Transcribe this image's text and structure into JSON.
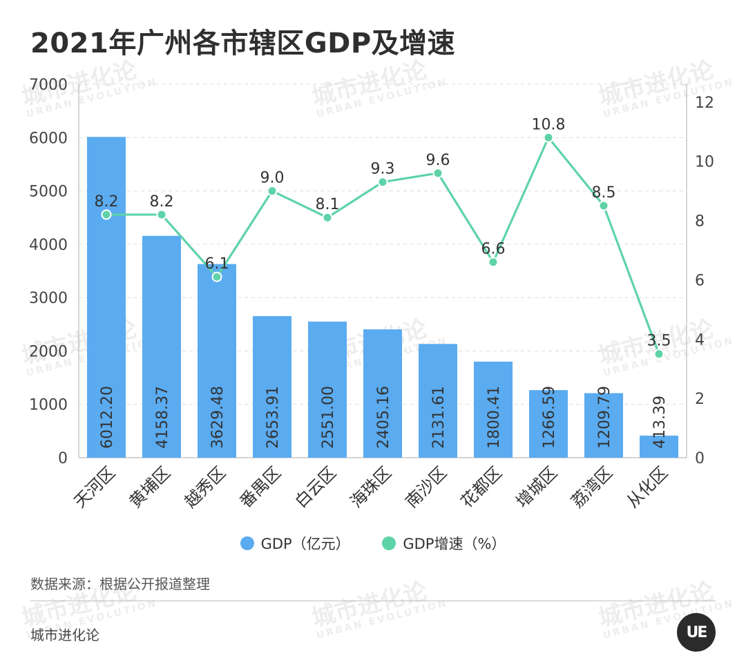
{
  "title": "2021年广州各市辖区GDP及增速",
  "chart_data": {
    "type": "bar+line",
    "categories": [
      "天河区",
      "黄埔区",
      "越秀区",
      "番禺区",
      "白云区",
      "海珠区",
      "南沙区",
      "花都区",
      "增城区",
      "荔湾区",
      "从化区"
    ],
    "series": [
      {
        "name": "GDP（亿元）",
        "type": "bar",
        "axis": "left",
        "color": "#5aabf0",
        "values": [
          6012.2,
          4158.37,
          3629.48,
          2653.91,
          2551.0,
          2405.16,
          2131.61,
          1800.41,
          1266.59,
          1209.79,
          413.39
        ],
        "labels": [
          "6012.20",
          "4158.37",
          "3629.48",
          "2653.91",
          "2551.00",
          "2405.16",
          "2131.61",
          "1800.41",
          "1266.59",
          "1209.79",
          "413.39"
        ]
      },
      {
        "name": "GDP增速（%）",
        "type": "line",
        "axis": "right",
        "color": "#5ed3a8",
        "values": [
          8.2,
          8.2,
          6.1,
          9.0,
          8.1,
          9.3,
          9.6,
          6.6,
          10.8,
          8.5,
          3.5
        ],
        "labels": [
          "8.2",
          "8.2",
          "6.1",
          "9.0",
          "8.1",
          "9.3",
          "9.6",
          "6.6",
          "10.8",
          "8.5",
          "3.5"
        ]
      }
    ],
    "left_axis": {
      "min": 0,
      "max": 7000,
      "ticks": [
        0,
        1000,
        2000,
        3000,
        4000,
        5000,
        6000,
        7000
      ]
    },
    "right_axis": {
      "min": 0,
      "max": 12.6,
      "ticks": [
        0,
        2,
        4,
        6,
        8,
        10,
        12
      ]
    },
    "grid": true,
    "legend": "bottom-center"
  },
  "legend": {
    "gdp_label": "GDP（亿元）",
    "growth_label": "GDP增速（%）",
    "gdp_color": "#5aabf0",
    "growth_color": "#5ed3a8"
  },
  "source": "数据来源：根据公开报道整理",
  "brand": "城市进化论",
  "logo_text": "UE",
  "watermark": {
    "cn": "城市进化论",
    "en": "URBAN EVOLUTION"
  }
}
